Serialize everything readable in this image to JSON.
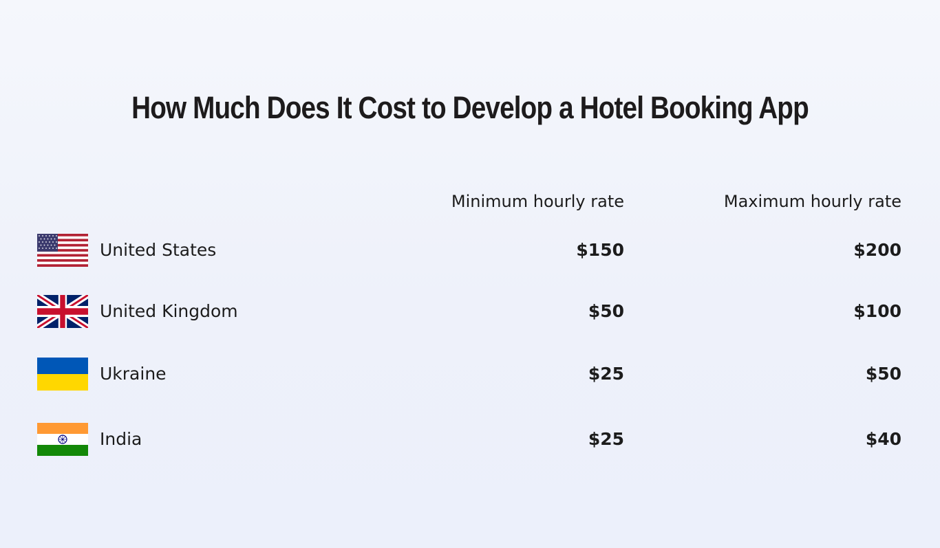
{
  "chart_data": {
    "type": "table",
    "title": "How Much Does It Cost to Develop a Hotel Booking App",
    "columns": [
      "Minimum hourly rate",
      "Maximum hourly rate"
    ],
    "rows": [
      {
        "country": "United States",
        "flag_icon": "us-flag-icon",
        "min": "$150",
        "max": "$200",
        "min_value": 150,
        "max_value": 200
      },
      {
        "country": "United Kingdom",
        "flag_icon": "uk-flag-icon",
        "min": "$50",
        "max": "$100",
        "min_value": 50,
        "max_value": 100
      },
      {
        "country": "Ukraine",
        "flag_icon": "ukraine-flag-icon",
        "min": "$25",
        "max": "$50",
        "min_value": 25,
        "max_value": 50
      },
      {
        "country": "India",
        "flag_icon": "india-flag-icon",
        "min": "$25",
        "max": "$40",
        "min_value": 25,
        "max_value": 40
      }
    ]
  },
  "colors": {
    "text": "#1c1c1c",
    "background": "#f1f4fb",
    "us_red": "#b22234",
    "us_blue": "#3c3b6e",
    "uk_blue": "#012169",
    "uk_red": "#c8102e",
    "ukraine_blue": "#0057b7",
    "ukraine_yellow": "#ffd700",
    "india_saffron": "#ff9933",
    "india_green": "#138808",
    "india_chakra": "#000080"
  }
}
